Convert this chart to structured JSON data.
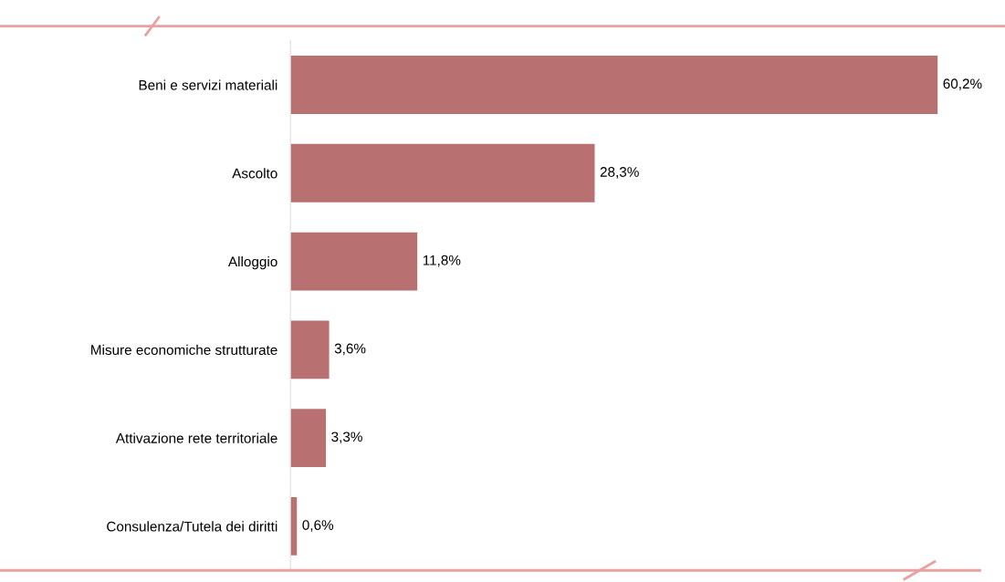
{
  "chart_data": {
    "type": "bar",
    "orientation": "horizontal",
    "categories": [
      "Beni e servizi materiali",
      "Ascolto",
      "Alloggio",
      "Misure economiche strutturate",
      "Attivazione rete territoriale",
      "Consulenza/Tutela dei diritti"
    ],
    "values": [
      60.2,
      28.3,
      11.8,
      3.6,
      3.3,
      0.6
    ],
    "value_labels": [
      "60,2%",
      "28,3%",
      "11,8%",
      "3,6%",
      "3,3%",
      "0,6%"
    ],
    "color": "#b87070",
    "grid": false,
    "legend": false
  }
}
